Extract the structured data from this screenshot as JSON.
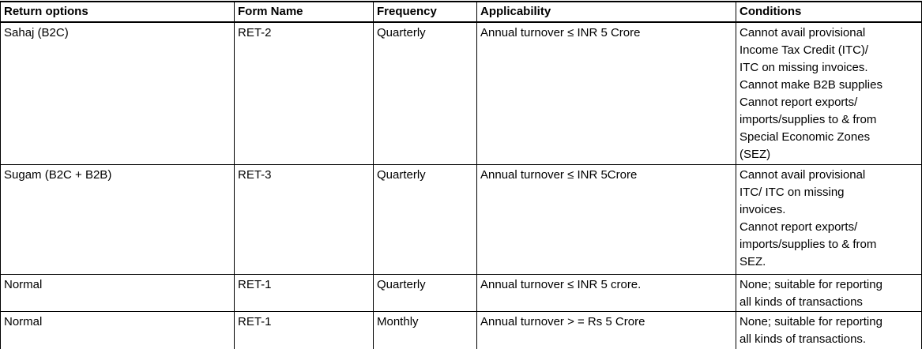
{
  "table": {
    "headers": {
      "return_options": "Return options",
      "form_name": "Form Name",
      "frequency": "Frequency",
      "applicability": "Applicability",
      "conditions": "Conditions"
    },
    "rows": [
      {
        "return_option": "Sahaj (B2C)",
        "form_name": "RET-2",
        "frequency": "Quarterly",
        "applicability": "Annual turnover ≤ INR 5 Crore",
        "conditions": "Cannot avail provisional\nIncome Tax Credit (ITC)/\nITC on missing invoices.\nCannot make B2B supplies\nCannot report exports/\nimports/supplies to & from\nSpecial Economic Zones\n(SEZ)"
      },
      {
        "return_option": "Sugam (B2C + B2B)",
        "form_name": "RET-3",
        "frequency": "Quarterly",
        "applicability": "Annual turnover ≤ INR 5Crore",
        "conditions": "Cannot avail provisional\nITC/ ITC on missing\ninvoices.\nCannot report exports/\nimports/supplies to & from\nSEZ."
      },
      {
        "return_option": "Normal",
        "form_name": "RET-1",
        "frequency": "Quarterly",
        "applicability": "Annual turnover ≤ INR 5 crore.",
        "conditions": "None; suitable for reporting\nall kinds of transactions"
      },
      {
        "return_option": "Normal",
        "form_name": "RET-1",
        "frequency": "Monthly",
        "applicability": "Annual turnover > = Rs 5 Crore",
        "conditions": "None; suitable for reporting\nall kinds of transactions."
      }
    ],
    "text_color": "#000000",
    "border_color": "#000000",
    "background_color": "#ffffff"
  }
}
